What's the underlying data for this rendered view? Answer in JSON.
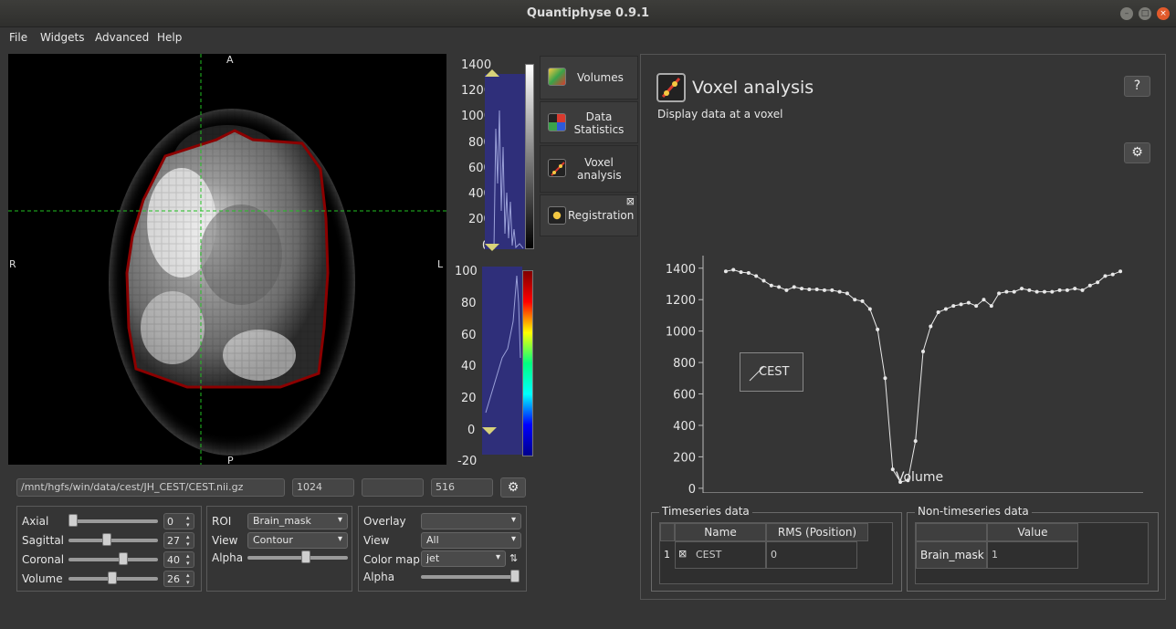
{
  "window": {
    "title": "Quantiphyse 0.9.1"
  },
  "menu": [
    "File",
    "Widgets",
    "Advanced",
    "Help"
  ],
  "viewer": {
    "orient_top": "A",
    "orient_bottom": "P",
    "orient_left": "R",
    "orient_right": "L"
  },
  "colorbar_main": {
    "ticks": [
      "1400",
      "1200",
      "1000",
      "800",
      "600",
      "400",
      "200",
      "0"
    ]
  },
  "colorbar_overlay": {
    "ticks": [
      "100",
      "80",
      "60",
      "40",
      "20",
      "0",
      "-20"
    ]
  },
  "pathbar": {
    "path": "/mnt/hgfs/win/data/cest/JH_CEST/CEST.nii.gz",
    "value1": "1024",
    "value2": "",
    "value3": "516"
  },
  "nav": {
    "axial_label": "Axial",
    "axial_value": "0",
    "sagittal_label": "Sagittal",
    "sagittal_value": "27",
    "coronal_label": "Coronal",
    "coronal_value": "40",
    "volume_label": "Volume",
    "volume_value": "26"
  },
  "roi": {
    "roi_label": "ROI",
    "roi_value": "Brain_mask",
    "view_label": "View",
    "view_value": "Contour",
    "alpha_label": "Alpha"
  },
  "overlay": {
    "overlay_label": "Overlay",
    "overlay_value": "",
    "view_label": "View",
    "view_value": "All",
    "cmap_label": "Color map",
    "cmap_value": "jet",
    "alpha_label": "Alpha"
  },
  "tabs": [
    {
      "label": "Volumes"
    },
    {
      "label": "Data Statistics"
    },
    {
      "label": "Voxel analysis"
    },
    {
      "label": "Registration"
    }
  ],
  "voxel": {
    "title": "Voxel analysis",
    "subtitle": "Display data at a voxel",
    "help": "?",
    "legend": "CEST",
    "xlabel": "Volume"
  },
  "chart_data": {
    "type": "line",
    "xlabel": "Volume",
    "ylabel": "",
    "xlim": [
      -3,
      55
    ],
    "ylim": [
      -30,
      1480
    ],
    "xticks": [
      0,
      10,
      20,
      30,
      40,
      50
    ],
    "yticks": [
      0,
      200,
      400,
      600,
      800,
      1000,
      1200,
      1400
    ],
    "series": [
      {
        "name": "CEST",
        "x": [
          0,
          1,
          2,
          3,
          4,
          5,
          6,
          7,
          8,
          9,
          10,
          11,
          12,
          13,
          14,
          15,
          16,
          17,
          18,
          19,
          20,
          21,
          22,
          23,
          24,
          25,
          26,
          27,
          28,
          29,
          30,
          31,
          32,
          33,
          34,
          35,
          36,
          37,
          38,
          39,
          40,
          41,
          42,
          43,
          44,
          45,
          46,
          47,
          48,
          49,
          50,
          51,
          52
        ],
        "y": [
          1380,
          1390,
          1375,
          1370,
          1350,
          1320,
          1290,
          1280,
          1260,
          1280,
          1270,
          1265,
          1265,
          1260,
          1260,
          1250,
          1240,
          1200,
          1190,
          1140,
          1010,
          700,
          120,
          40,
          50,
          300,
          870,
          1030,
          1120,
          1140,
          1160,
          1170,
          1180,
          1160,
          1200,
          1160,
          1240,
          1250,
          1250,
          1270,
          1260,
          1250,
          1250,
          1250,
          1260,
          1260,
          1270,
          1260,
          1290,
          1310,
          1350,
          1360,
          1380
        ]
      }
    ]
  },
  "timeseries": {
    "group_title": "Timeseries data",
    "col_name": "Name",
    "col_rms": "RMS (Position)",
    "rows": [
      {
        "index": "1",
        "name": "CEST",
        "rms": "0"
      }
    ]
  },
  "nontimeseries": {
    "group_title": "Non-timeseries data",
    "col_value": "Value",
    "rows": [
      {
        "name": "Brain_mask",
        "value": "1"
      }
    ]
  }
}
